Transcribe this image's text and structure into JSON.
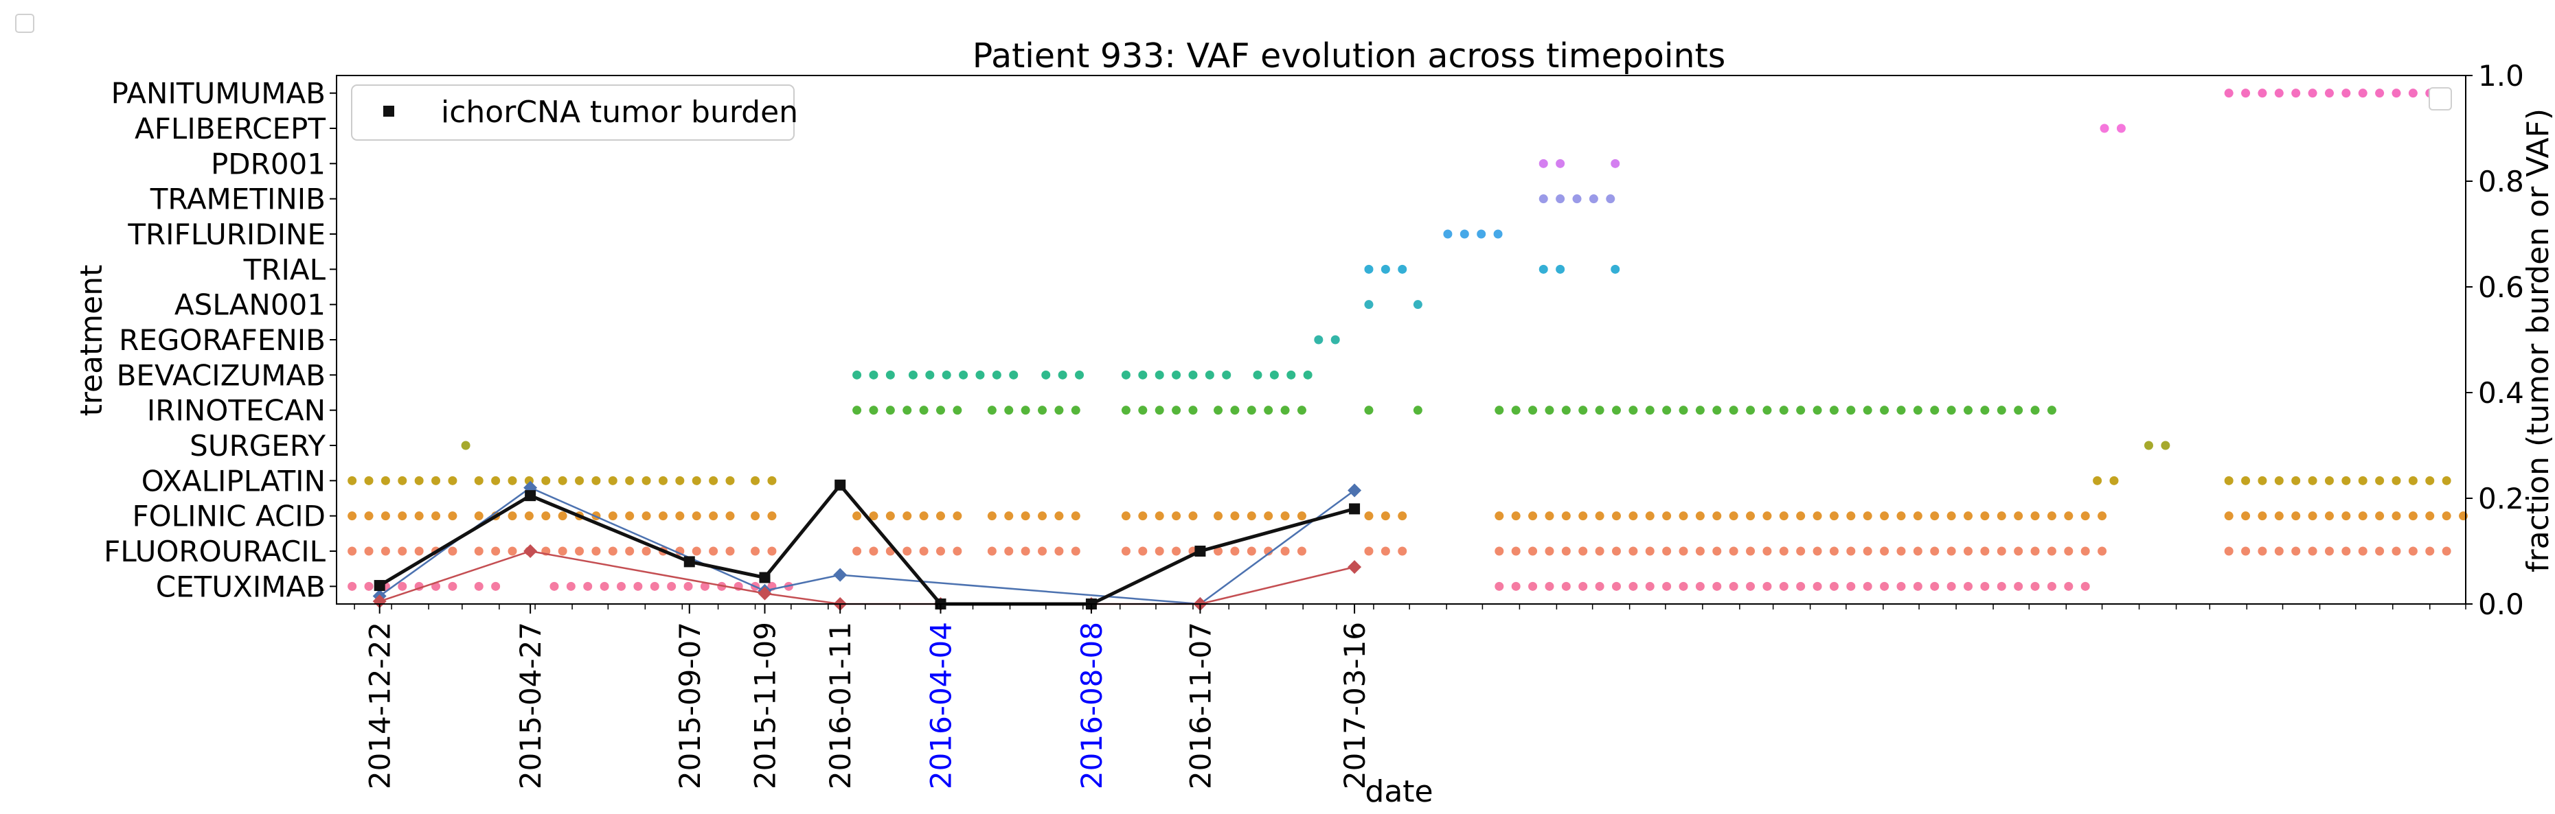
{
  "chart_data": {
    "type": "scatter",
    "title": "Patient 933: VAF evolution across timepoints",
    "xlabel": "date",
    "ylabel": "treatment",
    "y2label": "fraction (tumor burden or VAF)",
    "y2lim": [
      0.0,
      1.0
    ],
    "y2ticks": [
      "0.0",
      "0.2",
      "0.4",
      "0.6",
      "0.8",
      "1.0"
    ],
    "xlim": [
      "2014-11-16",
      "2019-10-01"
    ],
    "legend": {
      "label": "ichorCNA tumor burden",
      "position": "top-left"
    },
    "treatments": [
      "CETUXIMAB",
      "FLUOROURACIL",
      "FOLINIC ACID",
      "OXALIPLATIN",
      "SURGERY",
      "IRINOTECAN",
      "BEVACIZUMAB",
      "REGORAFENIB",
      "ASLAN001",
      "TRIAL",
      "TRIFLURIDINE",
      "TRAMETINIB",
      "PDR001",
      "AFLIBERCEPT",
      "PANITUMUMAB"
    ],
    "treatment_colors": {
      "CETUXIMAB": "#f57ba2",
      "FLUOROURACIL": "#f18a6b",
      "FOLINIC ACID": "#e39631",
      "OXALIPLATIN": "#c4a320",
      "SURGERY": "#a6a92c",
      "IRINOTECAN": "#55b63a",
      "BEVACIZUMAB": "#2fba8c",
      "REGORAFENIB": "#33b6a8",
      "ASLAN001": "#36b3c0",
      "TRIAL": "#34afd6",
      "TRIFLURIDINE": "#46a8e8",
      "TRAMETINIB": "#9a9ae8",
      "PDR001": "#d47ff0",
      "AFLIBERCEPT": "#f577dc",
      "PANITUMUMAB": "#f56fbf"
    },
    "treatment_periods": {
      "CETUXIMAB": [
        [
          "2014-11-29",
          "2015-02-25"
        ],
        [
          "2015-03-15",
          "2015-04-02"
        ],
        [
          "2015-05-17",
          "2015-12-07"
        ],
        [
          "2017-07-15",
          "2018-11-27"
        ]
      ],
      "FLUOROURACIL": [
        [
          "2014-11-29",
          "2015-02-25"
        ],
        [
          "2015-03-15",
          "2015-10-16"
        ],
        [
          "2015-11-01",
          "2015-11-23"
        ],
        [
          "2016-01-25",
          "2016-04-28"
        ],
        [
          "2016-05-17",
          "2016-08-01"
        ],
        [
          "2016-09-06",
          "2016-11-03"
        ],
        [
          "2016-11-22",
          "2017-02-09"
        ],
        [
          "2017-03-28",
          "2017-05-08"
        ],
        [
          "2017-07-15",
          "2018-12-11"
        ],
        [
          "2019-03-17",
          "2019-09-16"
        ]
      ],
      "FOLINIC ACID": [
        [
          "2014-11-29",
          "2015-02-25"
        ],
        [
          "2015-03-15",
          "2015-10-16"
        ],
        [
          "2015-11-01",
          "2015-11-23"
        ],
        [
          "2016-01-25",
          "2016-04-28"
        ],
        [
          "2016-05-17",
          "2016-08-01"
        ],
        [
          "2016-09-06",
          "2016-11-03"
        ],
        [
          "2016-11-22",
          "2017-02-09"
        ],
        [
          "2017-03-28",
          "2017-05-08"
        ],
        [
          "2017-07-15",
          "2018-12-11"
        ],
        [
          "2019-03-17",
          "2019-09-30"
        ]
      ],
      "OXALIPLATIN": [
        [
          "2014-11-29",
          "2015-02-25"
        ],
        [
          "2015-03-15",
          "2015-10-16"
        ],
        [
          "2015-11-01",
          "2015-11-23"
        ],
        [
          "2018-11-27",
          "2018-12-11"
        ],
        [
          "2019-03-17",
          "2019-09-16"
        ]
      ],
      "SURGERY": [
        [
          "2015-03-04",
          "2015-03-04"
        ],
        [
          "2019-01-09",
          "2019-01-23"
        ]
      ],
      "IRINOTECAN": [
        [
          "2016-01-25",
          "2016-04-28"
        ],
        [
          "2016-05-17",
          "2016-08-01"
        ],
        [
          "2016-09-06",
          "2016-11-03"
        ],
        [
          "2016-11-22",
          "2017-02-09"
        ],
        [
          "2017-03-28",
          "2017-03-28"
        ],
        [
          "2017-05-08",
          "2017-05-08"
        ],
        [
          "2017-07-15",
          "2018-10-29"
        ]
      ],
      "BEVACIZUMAB": [
        [
          "2016-01-25",
          "2016-02-26"
        ],
        [
          "2016-03-12",
          "2016-06-12"
        ],
        [
          "2016-07-01",
          "2016-08-01"
        ],
        [
          "2016-09-06",
          "2016-12-07"
        ],
        [
          "2016-12-25",
          "2017-02-09"
        ]
      ],
      "REGORAFENIB": [
        [
          "2017-02-14",
          "2017-03-05"
        ]
      ],
      "ASLAN001": [
        [
          "2017-03-28",
          "2017-03-28"
        ],
        [
          "2017-05-08",
          "2017-05-08"
        ]
      ],
      "TRIAL": [
        [
          "2017-03-28",
          "2017-05-08"
        ],
        [
          "2017-08-21",
          "2017-09-16"
        ],
        [
          "2017-10-20",
          "2017-10-20"
        ]
      ],
      "TRIFLURIDINE": [
        [
          "2017-06-02",
          "2017-07-15"
        ]
      ],
      "TRAMETINIB": [
        [
          "2017-08-21",
          "2017-10-20"
        ]
      ],
      "PDR001": [
        [
          "2017-08-21",
          "2017-09-16"
        ],
        [
          "2017-10-20",
          "2017-10-20"
        ]
      ],
      "AFLIBERCEPT": [
        [
          "2018-12-03",
          "2018-12-20"
        ]
      ],
      "PANITUMUMAB": [
        [
          "2019-03-17",
          "2019-09-16"
        ]
      ]
    },
    "timepoints": [
      "2014-12-22",
      "2015-04-27",
      "2015-09-07",
      "2015-11-09",
      "2016-01-11",
      "2016-04-04",
      "2016-08-08",
      "2016-11-07",
      "2017-03-16"
    ],
    "highlighted_timepoints": [
      "2016-04-04",
      "2016-08-08"
    ],
    "highlight_color": "#0000ff",
    "series": [
      {
        "name": "ichorCNA tumor burden",
        "color": "#111111",
        "marker": "square",
        "x": [
          "2014-12-22",
          "2015-04-27",
          "2015-09-07",
          "2015-11-09",
          "2016-01-11",
          "2016-04-04",
          "2016-08-08",
          "2016-11-07",
          "2017-03-16"
        ],
        "values": [
          0.035,
          0.205,
          0.08,
          0.05,
          0.225,
          0.0,
          0.0,
          0.1,
          0.18
        ]
      },
      {
        "color": "#4c72b0",
        "marker": "diamond",
        "x": [
          "2014-12-22",
          "2015-04-27",
          "2015-11-09",
          "2016-01-11",
          "2016-11-07",
          "2017-03-16"
        ],
        "values": [
          0.015,
          0.22,
          0.025,
          0.055,
          0.0,
          0.215
        ]
      },
      {
        "color": "#c44e52",
        "marker": "diamond",
        "x": [
          "2014-12-22",
          "2015-04-27",
          "2015-11-09",
          "2016-01-11",
          "2016-04-04",
          "2016-08-08",
          "2016-11-07",
          "2017-03-16"
        ],
        "values": [
          0.005,
          0.1,
          0.02,
          0.0,
          0.0,
          0.0,
          0.0,
          0.07
        ]
      }
    ]
  }
}
